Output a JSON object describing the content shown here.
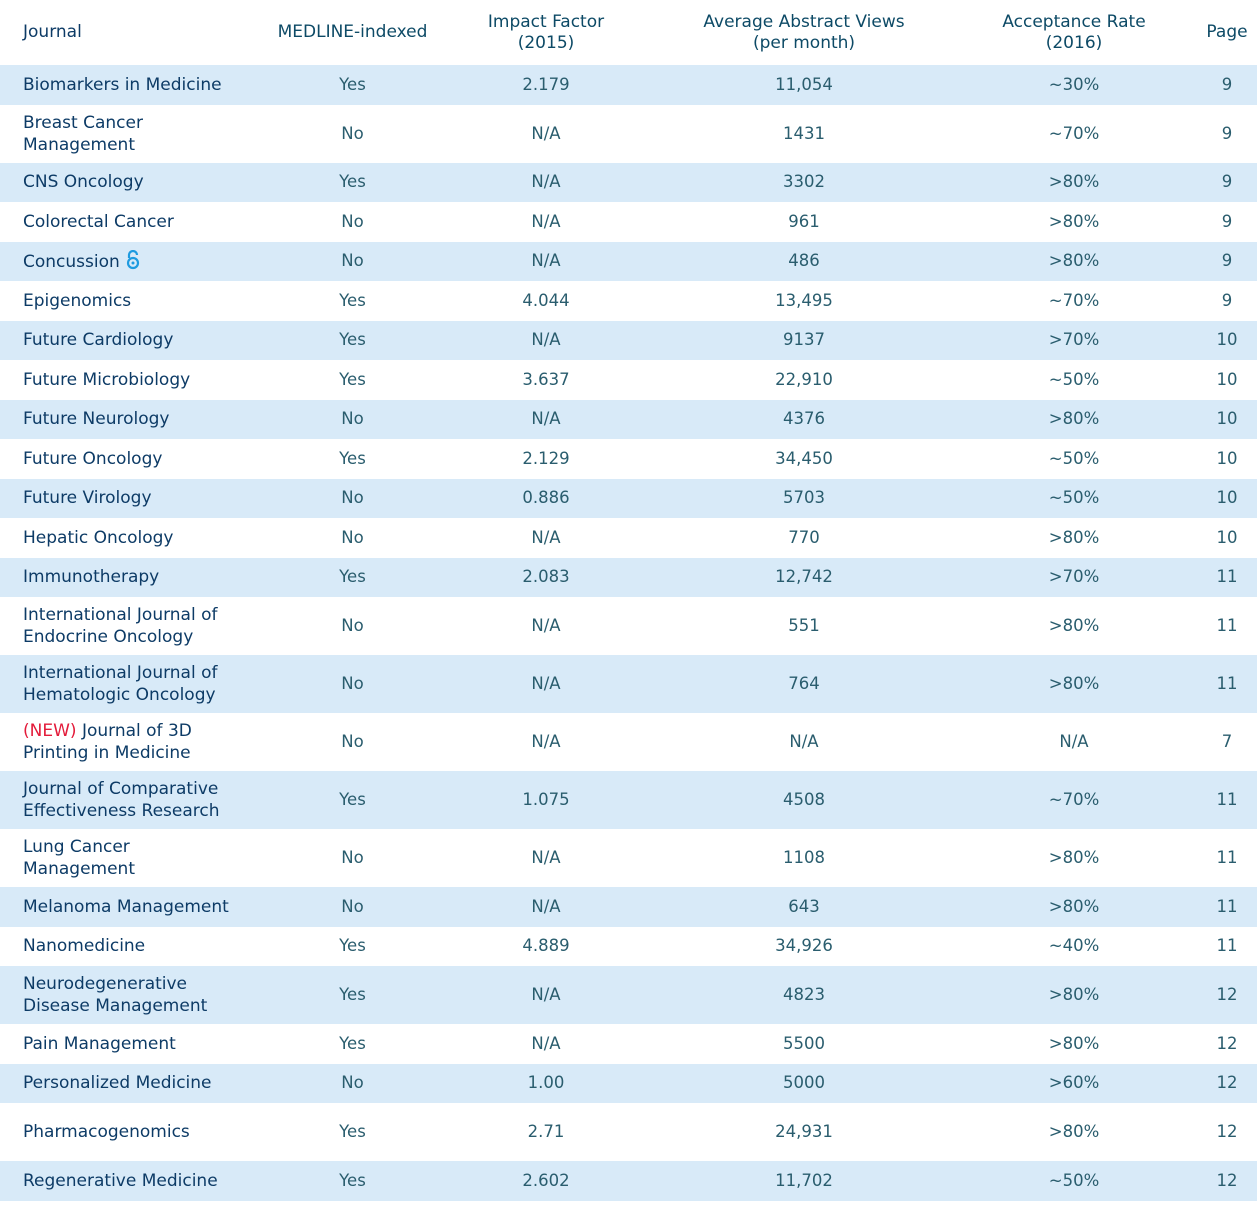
{
  "table": {
    "header": [
      "Journal",
      "MEDLINE-indexed",
      "Impact Factor\n(2015)",
      "Average Abstract Views\n(per month)",
      "Acceptance Rate\n(2016)",
      "Page"
    ],
    "rows": [
      {
        "journal": "Biomarkers in Medicine",
        "cells": [
          "Yes",
          "2.179",
          "11,054",
          "~30%",
          "9"
        ]
      },
      {
        "journal": "Breast Cancer\nManagement",
        "cells": [
          "No",
          "N/A",
          "1431",
          "~70%",
          "9"
        ]
      },
      {
        "journal": "CNS Oncology",
        "cells": [
          "Yes",
          "N/A",
          "3302",
          ">80%",
          "9"
        ]
      },
      {
        "journal": "Colorectal Cancer",
        "cells": [
          "No",
          "N/A",
          "961",
          ">80%",
          "9"
        ]
      },
      {
        "journal": "Concussion",
        "open_access": true,
        "cells": [
          "No",
          "N/A",
          "486",
          ">80%",
          "9"
        ]
      },
      {
        "journal": "Epigenomics",
        "cells": [
          "Yes",
          "4.044",
          "13,495",
          "~70%",
          "9"
        ]
      },
      {
        "journal": "Future Cardiology",
        "cells": [
          "Yes",
          "N/A",
          "9137",
          ">70%",
          "10"
        ]
      },
      {
        "journal": "Future Microbiology",
        "cells": [
          "Yes",
          "3.637",
          "22,910",
          "~50%",
          "10"
        ]
      },
      {
        "journal": "Future Neurology",
        "cells": [
          "No",
          "N/A",
          "4376",
          ">80%",
          "10"
        ]
      },
      {
        "journal": "Future Oncology",
        "cells": [
          "Yes",
          "2.129",
          "34,450",
          "~50%",
          "10"
        ]
      },
      {
        "journal": "Future Virology",
        "cells": [
          "No",
          "0.886",
          "5703",
          "~50%",
          "10"
        ]
      },
      {
        "journal": "Hepatic Oncology",
        "cells": [
          "No",
          "N/A",
          "770",
          ">80%",
          "10"
        ]
      },
      {
        "journal": "Immunotherapy",
        "cells": [
          "Yes",
          "2.083",
          "12,742",
          ">70%",
          "11"
        ]
      },
      {
        "journal": "International Journal of\nEndocrine Oncology",
        "cells": [
          "No",
          "N/A",
          "551",
          ">80%",
          "11"
        ]
      },
      {
        "journal": "International Journal of\nHematologic Oncology",
        "cells": [
          "No",
          "N/A",
          "764",
          ">80%",
          "11"
        ]
      },
      {
        "journal": "Journal of 3D\nPrinting in Medicine",
        "tag": "(NEW)",
        "cells": [
          "No",
          "N/A",
          "N/A",
          "N/A",
          "7"
        ]
      },
      {
        "journal": "Journal of Comparative\nEffectiveness Research",
        "cells": [
          "Yes",
          "1.075",
          "4508",
          "~70%",
          "11"
        ]
      },
      {
        "journal": "Lung Cancer\nManagement",
        "cells": [
          "No",
          "N/A",
          "1108",
          ">80%",
          "11"
        ]
      },
      {
        "journal": "Melanoma Management",
        "cells": [
          "No",
          "N/A",
          "643",
          ">80%",
          "11"
        ]
      },
      {
        "journal": "Nanomedicine",
        "cells": [
          "Yes",
          "4.889",
          "34,926",
          "~40%",
          "11"
        ]
      },
      {
        "journal": "Neurodegenerative\nDisease Management",
        "cells": [
          "Yes",
          "N/A",
          "4823",
          ">80%",
          "12"
        ]
      },
      {
        "journal": "Pain Management",
        "cells": [
          "Yes",
          "N/A",
          "5500",
          ">80%",
          "12"
        ]
      },
      {
        "journal": "Personalized Medicine",
        "cells": [
          "No",
          "1.00",
          "5000",
          ">60%",
          "12"
        ]
      },
      {
        "journal": "Pharmacogenomics",
        "tall": true,
        "cells": [
          "Yes",
          "2.71",
          "24,931",
          ">80%",
          "12"
        ]
      },
      {
        "journal": "Regenerative Medicine",
        "cells": [
          "Yes",
          "2.602",
          "11,702",
          "~50%",
          "12"
        ]
      }
    ]
  }
}
